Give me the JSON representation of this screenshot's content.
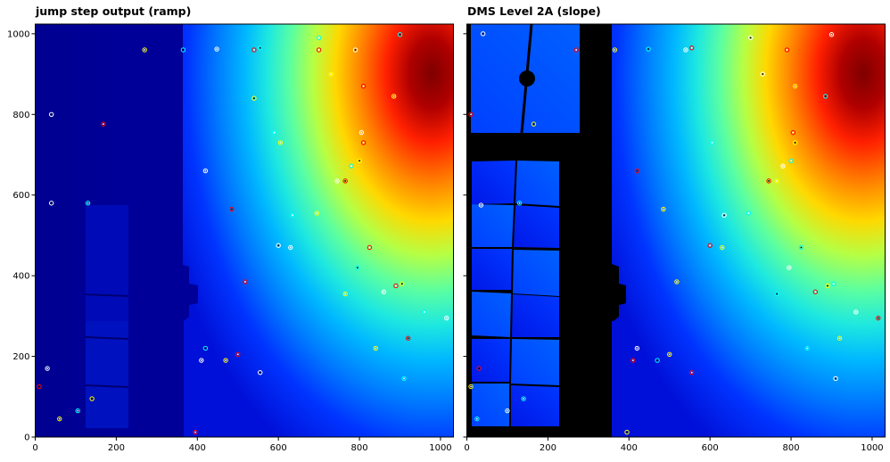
{
  "figure": {
    "background": "#ffffff"
  },
  "chart_data": [
    {
      "type": "heatmap",
      "title": "jump step output (ramp)",
      "xlabel": "",
      "ylabel": "",
      "xlim": [
        0,
        1032
      ],
      "ylim": [
        0,
        1024
      ],
      "xticks": [
        0,
        200,
        400,
        600,
        800,
        1000
      ],
      "yticks": [
        0,
        200,
        400,
        600,
        800,
        1000
      ],
      "colormap": "jet",
      "grid": false,
      "regions": {
        "dim_field_x": [
          0,
          360
        ],
        "bright_gradient_peak": [
          960,
          800
        ],
        "occulting_mask_x": [
          225,
          360
        ],
        "coronagraph_block_y": [
          0,
          1024
        ]
      },
      "hot_pixels": [
        [
          40,
          800
        ],
        [
          168,
          776
        ],
        [
          270,
          960
        ],
        [
          365,
          960
        ],
        [
          448,
          962
        ],
        [
          540,
          960
        ],
        [
          540,
          840
        ],
        [
          590,
          755
        ],
        [
          420,
          660
        ],
        [
          485,
          565
        ],
        [
          605,
          730
        ],
        [
          700,
          990
        ],
        [
          790,
          960
        ],
        [
          810,
          870
        ],
        [
          885,
          845
        ],
        [
          900,
          998
        ],
        [
          805,
          755
        ],
        [
          810,
          730
        ],
        [
          800,
          685
        ],
        [
          780,
          672
        ],
        [
          745,
          635
        ],
        [
          765,
          635
        ],
        [
          695,
          555
        ],
        [
          635,
          550
        ],
        [
          600,
          475
        ],
        [
          518,
          385
        ],
        [
          765,
          355
        ],
        [
          795,
          420
        ],
        [
          860,
          360
        ],
        [
          890,
          375
        ],
        [
          905,
          380
        ],
        [
          960,
          310
        ],
        [
          1015,
          295
        ],
        [
          920,
          245
        ],
        [
          840,
          220
        ],
        [
          910,
          145
        ],
        [
          555,
          160
        ],
        [
          500,
          205
        ],
        [
          470,
          190
        ],
        [
          420,
          220
        ],
        [
          410,
          190
        ],
        [
          395,
          12
        ],
        [
          140,
          95
        ],
        [
          105,
          65
        ],
        [
          30,
          170
        ],
        [
          10,
          125
        ],
        [
          60,
          45
        ],
        [
          130,
          580
        ],
        [
          40,
          580
        ],
        [
          700,
          960
        ],
        [
          730,
          900
        ],
        [
          555,
          965
        ],
        [
          630,
          470
        ],
        [
          825,
          470
        ]
      ]
    },
    {
      "type": "heatmap",
      "title": "DMS Level 2A (slope)",
      "xlabel": "",
      "ylabel": "",
      "xlim": [
        0,
        1032
      ],
      "ylim": [
        0,
        1024
      ],
      "xticks": [
        0,
        200,
        400,
        600,
        800,
        1000
      ],
      "yticks": [
        0,
        200,
        400,
        600,
        800,
        1000
      ],
      "colormap": "jet",
      "grid": false,
      "masked_color": "#000000",
      "hot_pixels": [
        [
          40,
          1000
        ],
        [
          270,
          960
        ],
        [
          365,
          960
        ],
        [
          448,
          962
        ],
        [
          540,
          960
        ],
        [
          10,
          800
        ],
        [
          165,
          776
        ],
        [
          130,
          580
        ],
        [
          35,
          575
        ],
        [
          420,
          660
        ],
        [
          485,
          565
        ],
        [
          605,
          730
        ],
        [
          700,
          990
        ],
        [
          790,
          960
        ],
        [
          810,
          870
        ],
        [
          885,
          845
        ],
        [
          900,
          998
        ],
        [
          805,
          755
        ],
        [
          810,
          730
        ],
        [
          800,
          685
        ],
        [
          780,
          672
        ],
        [
          745,
          635
        ],
        [
          765,
          635
        ],
        [
          695,
          555
        ],
        [
          635,
          550
        ],
        [
          600,
          475
        ],
        [
          518,
          385
        ],
        [
          765,
          355
        ],
        [
          795,
          420
        ],
        [
          860,
          360
        ],
        [
          890,
          375
        ],
        [
          905,
          380
        ],
        [
          960,
          310
        ],
        [
          1015,
          295
        ],
        [
          920,
          245
        ],
        [
          840,
          220
        ],
        [
          910,
          145
        ],
        [
          555,
          160
        ],
        [
          500,
          205
        ],
        [
          470,
          190
        ],
        [
          420,
          220
        ],
        [
          410,
          190
        ],
        [
          395,
          12
        ],
        [
          140,
          95
        ],
        [
          100,
          65
        ],
        [
          30,
          170
        ],
        [
          10,
          125
        ],
        [
          25,
          45
        ],
        [
          730,
          900
        ],
        [
          555,
          965
        ],
        [
          630,
          470
        ],
        [
          825,
          470
        ]
      ]
    }
  ]
}
